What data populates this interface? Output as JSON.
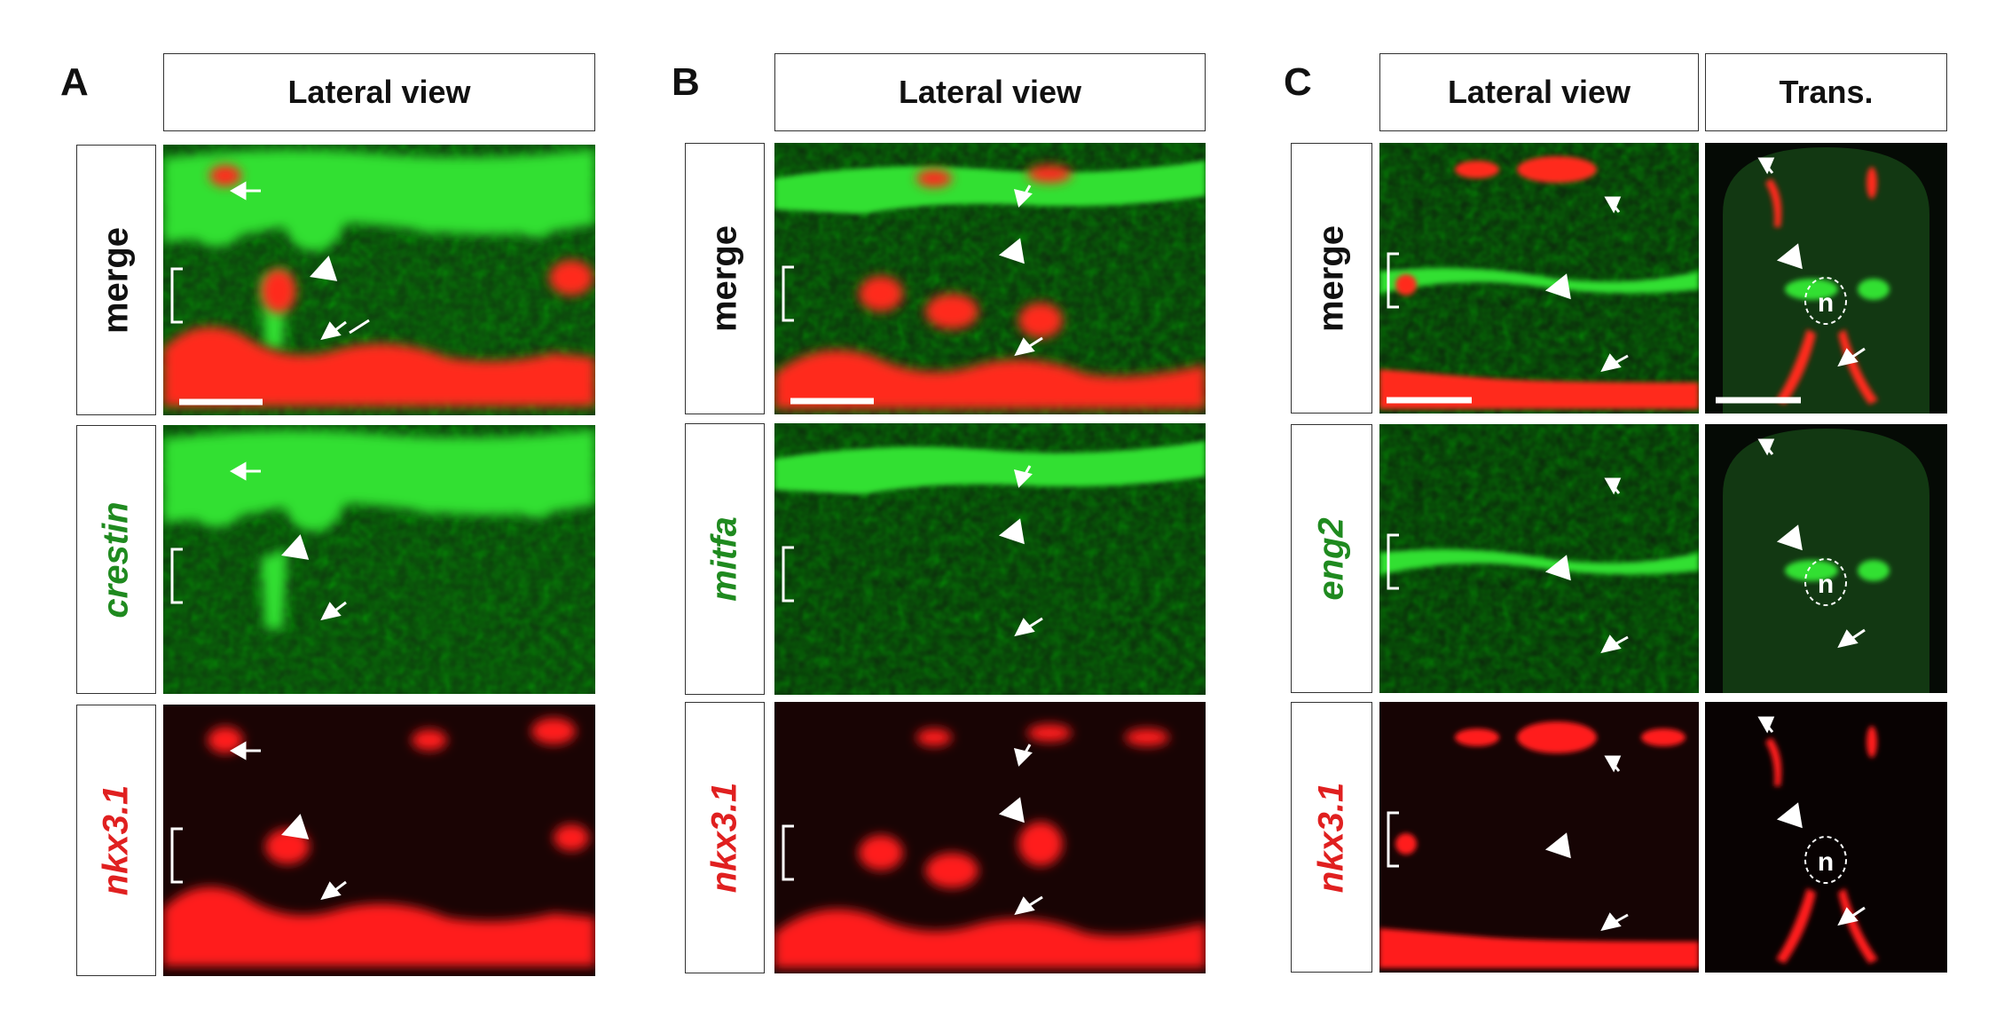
{
  "panels": [
    {
      "letter": "A",
      "columns": [
        "Lateral view"
      ],
      "rows": [
        {
          "label": "merge",
          "color": "#111111",
          "italic": false
        },
        {
          "label": "crestin",
          "color": "#1f8a1f",
          "italic": true
        },
        {
          "label": "nkx3.1",
          "color": "#e02020",
          "italic": true
        }
      ]
    },
    {
      "letter": "B",
      "columns": [
        "Lateral view"
      ],
      "rows": [
        {
          "label": "merge",
          "color": "#111111",
          "italic": false
        },
        {
          "label": "mitfa",
          "color": "#1f8a1f",
          "italic": true
        },
        {
          "label": "nkx3.1",
          "color": "#e02020",
          "italic": true
        }
      ]
    },
    {
      "letter": "C",
      "columns": [
        "Lateral view",
        "Trans."
      ],
      "rows": [
        {
          "label": "merge",
          "color": "#111111",
          "italic": false
        },
        {
          "label": "eng2",
          "color": "#1f8a1f",
          "italic": true
        },
        {
          "label": "nkx3.1",
          "color": "#e02020",
          "italic": true
        }
      ],
      "notochord_label": "n"
    }
  ],
  "colors": {
    "green_channel": "#22e022",
    "red_channel": "#ff1a1a",
    "background": "#0a0a0a",
    "annotation": "#ffffff"
  }
}
